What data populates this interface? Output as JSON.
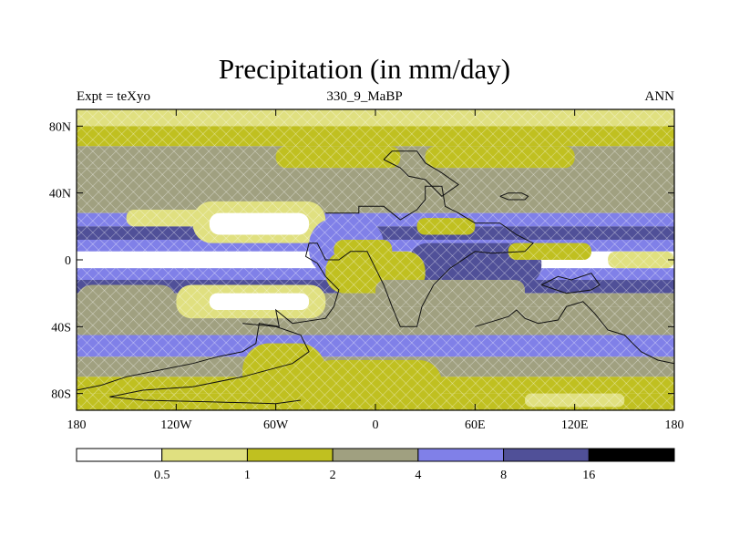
{
  "chart_data": {
    "type": "heatmap",
    "title": "Precipitation (in mm/day)",
    "subtitle_left": "Expt = teXyo",
    "subtitle_center": "330_9_MaBP",
    "subtitle_right": "ANN",
    "xlabel": "",
    "ylabel": "",
    "xlim": [
      -180,
      180
    ],
    "ylim": [
      -90,
      90
    ],
    "x_ticks": [
      {
        "value": -180,
        "label": "180"
      },
      {
        "value": -120,
        "label": "120W"
      },
      {
        "value": -60,
        "label": "60W"
      },
      {
        "value": 0,
        "label": "0"
      },
      {
        "value": 60,
        "label": "60E"
      },
      {
        "value": 120,
        "label": "120E"
      },
      {
        "value": 180,
        "label": "180"
      }
    ],
    "y_ticks": [
      {
        "value": 80,
        "label": "80N"
      },
      {
        "value": 40,
        "label": "40N"
      },
      {
        "value": 0,
        "label": "0"
      },
      {
        "value": -40,
        "label": "40S"
      },
      {
        "value": -80,
        "label": "80S"
      }
    ],
    "colorbar": {
      "levels": [
        "0.5",
        "1",
        "2",
        "4",
        "8",
        "16"
      ],
      "colors": [
        "#ffffff",
        "#e0e080",
        "#c0c020",
        "#a0a080",
        "#8080e8",
        "#505098",
        "#000000"
      ]
    },
    "zonal_bands": [
      {
        "lat": [
          80,
          90
        ],
        "class": 1
      },
      {
        "lat": [
          68,
          80
        ],
        "class": 2
      },
      {
        "lat": [
          55,
          68
        ],
        "class": 3
      },
      {
        "lat": [
          42,
          55
        ],
        "class": 3
      },
      {
        "lat": [
          28,
          42
        ],
        "class": 3
      },
      {
        "lat": [
          20,
          28
        ],
        "class": 4
      },
      {
        "lat": [
          12,
          20
        ],
        "class": 5
      },
      {
        "lat": [
          5,
          12
        ],
        "class": 4
      },
      {
        "lat": [
          -5,
          5
        ],
        "class": 0
      },
      {
        "lat": [
          -12,
          -5
        ],
        "class": 4
      },
      {
        "lat": [
          -20,
          -12
        ],
        "class": 5
      },
      {
        "lat": [
          -28,
          -20
        ],
        "class": 3
      },
      {
        "lat": [
          -45,
          -28
        ],
        "class": 3
      },
      {
        "lat": [
          -58,
          -45
        ],
        "class": 4
      },
      {
        "lat": [
          -70,
          -58
        ],
        "class": 3
      },
      {
        "lat": [
          -80,
          -70
        ],
        "class": 2
      },
      {
        "lat": [
          -90,
          -80
        ],
        "class": 2
      }
    ],
    "regions": [
      {
        "lon": [
          -60,
          15
        ],
        "lat": [
          55,
          68
        ],
        "class": 2
      },
      {
        "lon": [
          30,
          120
        ],
        "lat": [
          55,
          68
        ],
        "class": 2
      },
      {
        "lon": [
          -110,
          -30
        ],
        "lat": [
          10,
          35
        ],
        "class": 1
      },
      {
        "lon": [
          -100,
          -40
        ],
        "lat": [
          15,
          28
        ],
        "class": 0
      },
      {
        "lon": [
          -150,
          -100
        ],
        "lat": [
          20,
          30
        ],
        "class": 1
      },
      {
        "lon": [
          -40,
          5
        ],
        "lat": [
          -10,
          25
        ],
        "class": 4
      },
      {
        "lon": [
          -25,
          10
        ],
        "lat": [
          0,
          12
        ],
        "class": 2
      },
      {
        "lon": [
          20,
          100
        ],
        "lat": [
          -15,
          10
        ],
        "class": 5
      },
      {
        "lon": [
          25,
          60
        ],
        "lat": [
          15,
          25
        ],
        "class": 2
      },
      {
        "lon": [
          80,
          130
        ],
        "lat": [
          0,
          10
        ],
        "class": 2
      },
      {
        "lon": [
          140,
          180
        ],
        "lat": [
          -5,
          5
        ],
        "class": 1
      },
      {
        "lon": [
          -120,
          -30
        ],
        "lat": [
          -35,
          -15
        ],
        "class": 1
      },
      {
        "lon": [
          -100,
          -40
        ],
        "lat": [
          -30,
          -20
        ],
        "class": 0
      },
      {
        "lon": [
          -30,
          30
        ],
        "lat": [
          -20,
          5
        ],
        "class": 2
      },
      {
        "lon": [
          0,
          90
        ],
        "lat": [
          -25,
          -12
        ],
        "class": 3
      },
      {
        "lon": [
          -180,
          -120
        ],
        "lat": [
          -35,
          -15
        ],
        "class": 3
      },
      {
        "lon": [
          -80,
          -30
        ],
        "lat": [
          -85,
          -50
        ],
        "class": 2
      },
      {
        "lon": [
          -40,
          40
        ],
        "lat": [
          -90,
          -60
        ],
        "class": 2
      },
      {
        "lon": [
          90,
          150
        ],
        "lat": [
          -88,
          -80
        ],
        "class": 1
      }
    ],
    "coastlines": [
      [
        [
          -30,
          28
        ],
        [
          -10,
          28
        ],
        [
          -10,
          32
        ],
        [
          5,
          32
        ],
        [
          10,
          28
        ],
        [
          15,
          24
        ],
        [
          25,
          30
        ],
        [
          30,
          36
        ],
        [
          30,
          44
        ],
        [
          40,
          44
        ],
        [
          42,
          32
        ],
        [
          50,
          28
        ],
        [
          60,
          22
        ],
        [
          75,
          22
        ],
        [
          85,
          15
        ],
        [
          95,
          10
        ],
        [
          90,
          5
        ],
        [
          70,
          4
        ],
        [
          60,
          5
        ],
        [
          45,
          -5
        ],
        [
          35,
          -15
        ],
        [
          28,
          -28
        ],
        [
          25,
          -40
        ],
        [
          15,
          -40
        ],
        [
          10,
          -28
        ],
        [
          5,
          -15
        ],
        [
          0,
          -5
        ],
        [
          -5,
          5
        ],
        [
          -15,
          5
        ],
        [
          -22,
          0
        ],
        [
          -30,
          0
        ],
        [
          -35,
          10
        ],
        [
          -40,
          10
        ],
        [
          -42,
          2
        ],
        [
          -35,
          -2
        ],
        [
          -30,
          -10
        ],
        [
          -22,
          -18
        ],
        [
          -25,
          -28
        ],
        [
          -30,
          -35
        ],
        [
          -50,
          -38
        ],
        [
          -60,
          -30
        ],
        [
          -58,
          -40
        ],
        [
          -70,
          -38
        ],
        [
          -72,
          -50
        ],
        [
          -80,
          -55
        ],
        [
          -95,
          -58
        ],
        [
          -110,
          -62
        ],
        [
          -130,
          -66
        ],
        [
          -150,
          -70
        ],
        [
          -165,
          -75
        ],
        [
          -180,
          -78
        ]
      ],
      [
        [
          -80,
          -38
        ],
        [
          -60,
          -40
        ],
        [
          -45,
          -45
        ],
        [
          -40,
          -55
        ],
        [
          -50,
          -62
        ],
        [
          -80,
          -70
        ],
        [
          -110,
          -76
        ],
        [
          -140,
          -78
        ],
        [
          -160,
          -82
        ],
        [
          -140,
          -84
        ],
        [
          -100,
          -85
        ],
        [
          -60,
          -86
        ],
        [
          -45,
          -84
        ]
      ],
      [
        [
          5,
          60
        ],
        [
          10,
          65
        ],
        [
          25,
          65
        ],
        [
          30,
          58
        ],
        [
          40,
          52
        ],
        [
          50,
          45
        ],
        [
          40,
          38
        ],
        [
          30,
          48
        ],
        [
          20,
          50
        ],
        [
          15,
          55
        ],
        [
          5,
          60
        ]
      ],
      [
        [
          60,
          -40
        ],
        [
          80,
          -34
        ],
        [
          85,
          -30
        ],
        [
          90,
          -35
        ],
        [
          98,
          -38
        ],
        [
          110,
          -36
        ],
        [
          115,
          -28
        ],
        [
          125,
          -25
        ],
        [
          132,
          -32
        ],
        [
          140,
          -42
        ],
        [
          150,
          -45
        ],
        [
          155,
          -50
        ],
        [
          160,
          -55
        ],
        [
          170,
          -60
        ],
        [
          180,
          -62
        ]
      ],
      [
        [
          100,
          -15
        ],
        [
          110,
          -10
        ],
        [
          118,
          -12
        ],
        [
          130,
          -8
        ],
        [
          135,
          -15
        ],
        [
          130,
          -18
        ],
        [
          115,
          -20
        ],
        [
          100,
          -15
        ]
      ],
      [
        [
          75,
          38
        ],
        [
          80,
          40
        ],
        [
          88,
          40
        ],
        [
          92,
          38
        ],
        [
          90,
          36
        ],
        [
          80,
          36
        ],
        [
          75,
          38
        ]
      ]
    ]
  }
}
